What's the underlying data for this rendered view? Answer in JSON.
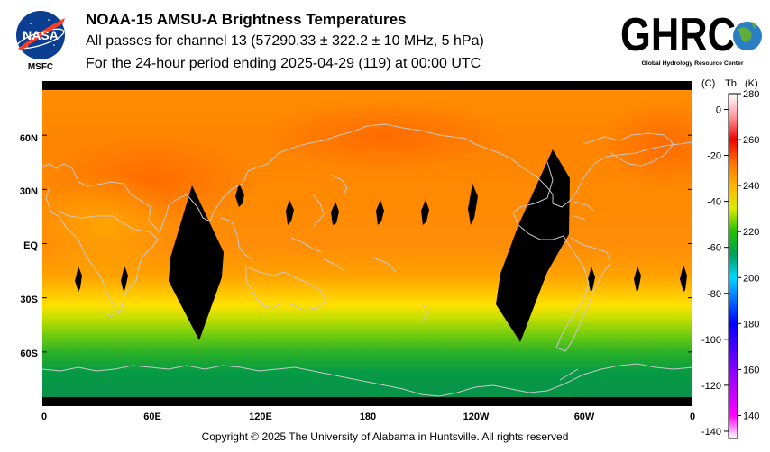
{
  "header": {
    "title": "NOAA-15 AMSU-A Brightness Temperatures",
    "line2": "All passes for channel 13 (57290.33 ± 322.2 ± 10 MHz, 5 hPa)",
    "line3": "For the 24-hour period ending 2025-04-29 (119) at 00:00 UTC"
  },
  "logos": {
    "nasa_text": "NASA",
    "msfc_text": "MSFC",
    "ghrc_text": "GHRC",
    "ghrc_subtitle": "Global Hydrology Resource Center"
  },
  "map": {
    "lat_labels": [
      "60N",
      "30N",
      "EQ",
      "30S",
      "60S"
    ],
    "lat_values": [
      60,
      30,
      0,
      -30,
      -60
    ],
    "lon_labels": [
      "0",
      "60E",
      "120E",
      "180",
      "120W",
      "60W",
      "0"
    ],
    "lon_values": [
      0,
      60,
      120,
      180,
      240,
      300,
      360
    ],
    "lat_range": [
      -90,
      90
    ],
    "lon_range": [
      0,
      360
    ],
    "background_color": "#000000",
    "coastline_color": "#c8c8c8"
  },
  "colorbar": {
    "header_c": "(C)",
    "header_tb": "Tb",
    "header_k": "(K)",
    "kelvin_range": [
      130,
      280
    ],
    "kelvin_ticks": [
      "280",
      "260",
      "240",
      "220",
      "200",
      "180",
      "160",
      "140"
    ],
    "celsius_ticks": [
      "0",
      "-20",
      "-40",
      "-60",
      "-80",
      "-100",
      "-120",
      "-140"
    ],
    "color_stops": [
      {
        "k": 130,
        "color": "#ffffff"
      },
      {
        "k": 140,
        "color": "#ff00ff"
      },
      {
        "k": 160,
        "color": "#8800ff"
      },
      {
        "k": 180,
        "color": "#0000ff"
      },
      {
        "k": 200,
        "color": "#00d8ff"
      },
      {
        "k": 210,
        "color": "#00a060"
      },
      {
        "k": 220,
        "color": "#22c000"
      },
      {
        "k": 230,
        "color": "#dcec00"
      },
      {
        "k": 240,
        "color": "#ffb400"
      },
      {
        "k": 250,
        "color": "#ff7000"
      },
      {
        "k": 260,
        "color": "#ee0000"
      },
      {
        "k": 270,
        "color": "#ff9aa0"
      },
      {
        "k": 280,
        "color": "#ffffff"
      }
    ]
  },
  "footer": {
    "copyright": "Copyright © 2025 The University of Alabama in Huntsville.  All rights reserved"
  }
}
